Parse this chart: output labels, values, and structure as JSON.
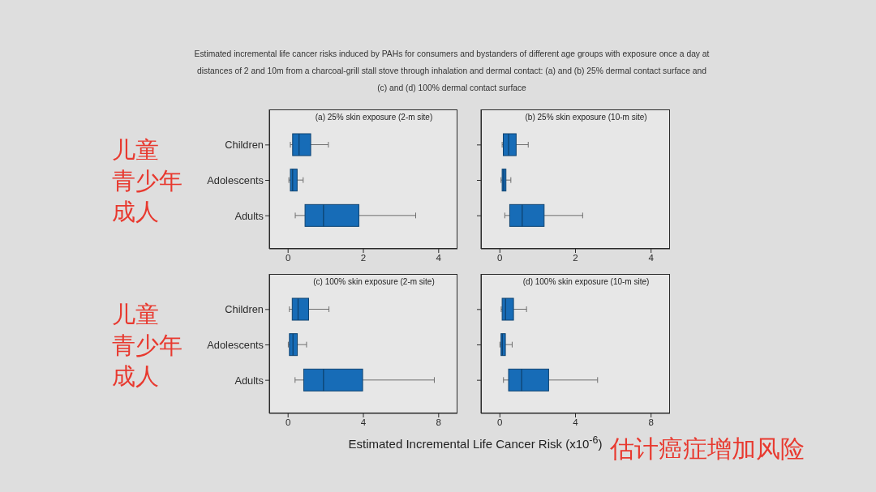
{
  "chart_data": [
    {
      "type": "other",
      "title": "Estimated incremental life cancer risks induced by PAHs for consumers and bystanders of different age groups with exposure once a day at distances of 2 and 10m from a charcoal-grill stall stove through inhalation and dermal contact: (a) and (b) 25% dermal contact surface and (c) and (d) 100% dermal contact surface"
    },
    {
      "type": "box",
      "title": "(a) 25% skin exposure (2-m site)",
      "orientation": "horizontal",
      "categories": [
        "Children",
        "Adolescents",
        "Adults"
      ],
      "series": [
        {
          "color": "#176cb7",
          "boxes": [
            {
              "low": 0.06,
              "q1": 0.12,
              "median": 0.29,
              "q3": 0.6,
              "high": 1.07
            },
            {
              "low": 0.02,
              "q1": 0.06,
              "median": 0.12,
              "q3": 0.24,
              "high": 0.4
            },
            {
              "low": 0.19,
              "q1": 0.45,
              "median": 0.94,
              "q3": 1.88,
              "high": 3.39
            }
          ]
        }
      ],
      "xlim": [
        -0.5,
        4.5
      ],
      "xticks": [
        0,
        2,
        4
      ],
      "annotations": [
        "儿童",
        "青少年",
        "成人"
      ]
    },
    {
      "type": "box",
      "title": "(b) 25% skin exposure (10-m site)",
      "orientation": "horizontal",
      "categories": [
        null,
        null,
        null
      ],
      "series": [
        {
          "color": "#176cb7",
          "boxes": [
            {
              "low": 0.06,
              "q1": 0.09,
              "median": 0.23,
              "q3": 0.43,
              "high": 0.75
            },
            {
              "low": 0.03,
              "q1": 0.06,
              "median": 0.1,
              "q3": 0.16,
              "high": 0.29
            },
            {
              "low": 0.13,
              "q1": 0.26,
              "median": 0.59,
              "q3": 1.17,
              "high": 2.19
            }
          ]
        }
      ],
      "xlim": [
        -0.5,
        4.5
      ],
      "xticks": [
        0,
        2,
        4
      ],
      "tick_labels": "x"
    },
    {
      "type": "box",
      "title": "(c) 100% skin exposure (2-m site)",
      "orientation": "horizontal",
      "categories": [
        "Children",
        "Adolescents",
        "Adults"
      ],
      "series": [
        {
          "color": "#176cb7",
          "boxes": [
            {
              "low": 0.07,
              "q1": 0.22,
              "median": 0.53,
              "q3": 1.09,
              "high": 2.17
            },
            {
              "low": 0.01,
              "q1": 0.07,
              "median": 0.26,
              "q3": 0.49,
              "high": 0.98
            },
            {
              "low": 0.37,
              "q1": 0.83,
              "median": 1.88,
              "q3": 3.96,
              "high": 7.77
            }
          ]
        }
      ],
      "xlim": [
        -1,
        9
      ],
      "xticks": [
        0,
        4,
        8
      ],
      "xlabel": "Estimated Incremental Life Cancer Risk (x10$^{-6}$)",
      "annotations": [
        "儿童",
        "青少年",
        "成人"
      ]
    },
    {
      "type": "box",
      "title": "(d) 100% skin exposure (10-m site)",
      "orientation": "horizontal",
      "categories": [
        null,
        null,
        null
      ],
      "series": [
        {
          "color": "#176cb7",
          "boxes": [
            {
              "low": 0.07,
              "q1": 0.12,
              "median": 0.3,
              "q3": 0.72,
              "high": 1.41
            },
            {
              "low": 0,
              "q1": 0.06,
              "median": 0.13,
              "q3": 0.29,
              "high": 0.65
            },
            {
              "low": 0.19,
              "q1": 0.46,
              "median": 1.15,
              "q3": 2.58,
              "high": 5.17
            }
          ]
        }
      ],
      "xlim": [
        -1,
        9
      ],
      "xticks": [
        0,
        4,
        8
      ],
      "tick_labels": "x",
      "annotations": [
        "估计癌症增加风险"
      ]
    }
  ]
}
